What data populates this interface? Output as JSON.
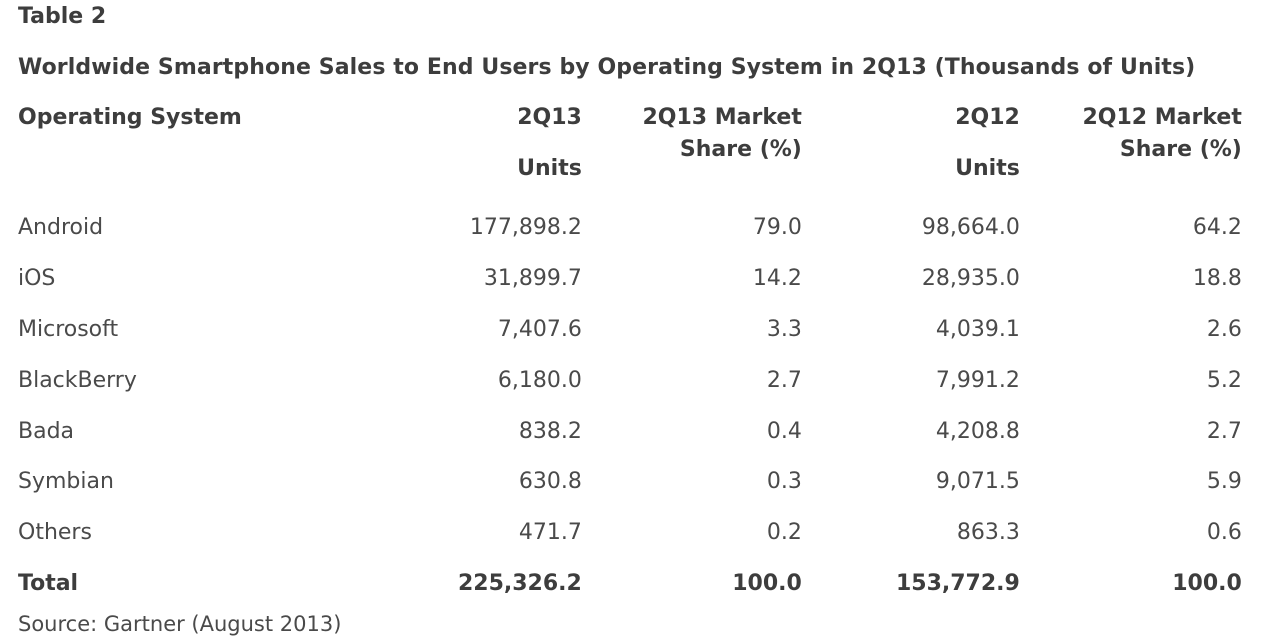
{
  "header": {
    "table_label": "Table 2",
    "title": "Worldwide Smartphone Sales to End Users by Operating System in 2Q13 (Thousands of Units)"
  },
  "table": {
    "columns": [
      {
        "line1": "Operating System",
        "line2": ""
      },
      {
        "line1": "2Q13",
        "line2": "Units"
      },
      {
        "line1": "2Q13 Market",
        "line2": "Share (%)"
      },
      {
        "line1": "2Q12",
        "line2": "Units"
      },
      {
        "line1": "2Q12 Market",
        "line2": "Share (%)"
      }
    ],
    "rows": [
      [
        "Android",
        "177,898.2",
        "79.0",
        "98,664.0",
        "64.2"
      ],
      [
        "iOS",
        "31,899.7",
        "14.2",
        "28,935.0",
        "18.8"
      ],
      [
        "Microsoft",
        "7,407.6",
        "3.3",
        "4,039.1",
        "2.6"
      ],
      [
        "BlackBerry",
        "6,180.0",
        "2.7",
        "7,991.2",
        "5.2"
      ],
      [
        "Bada",
        "838.2",
        "0.4",
        "4,208.8",
        "2.7"
      ],
      [
        "Symbian",
        "630.8",
        "0.3",
        "9,071.5",
        "5.9"
      ],
      [
        "Others",
        "471.7",
        "0.2",
        "863.3",
        "0.6"
      ],
      [
        "Total",
        "225,326.2",
        "100.0",
        "153,772.9",
        "100.0"
      ]
    ]
  },
  "footer": {
    "source": "Source: Gartner (August 2013)"
  }
}
